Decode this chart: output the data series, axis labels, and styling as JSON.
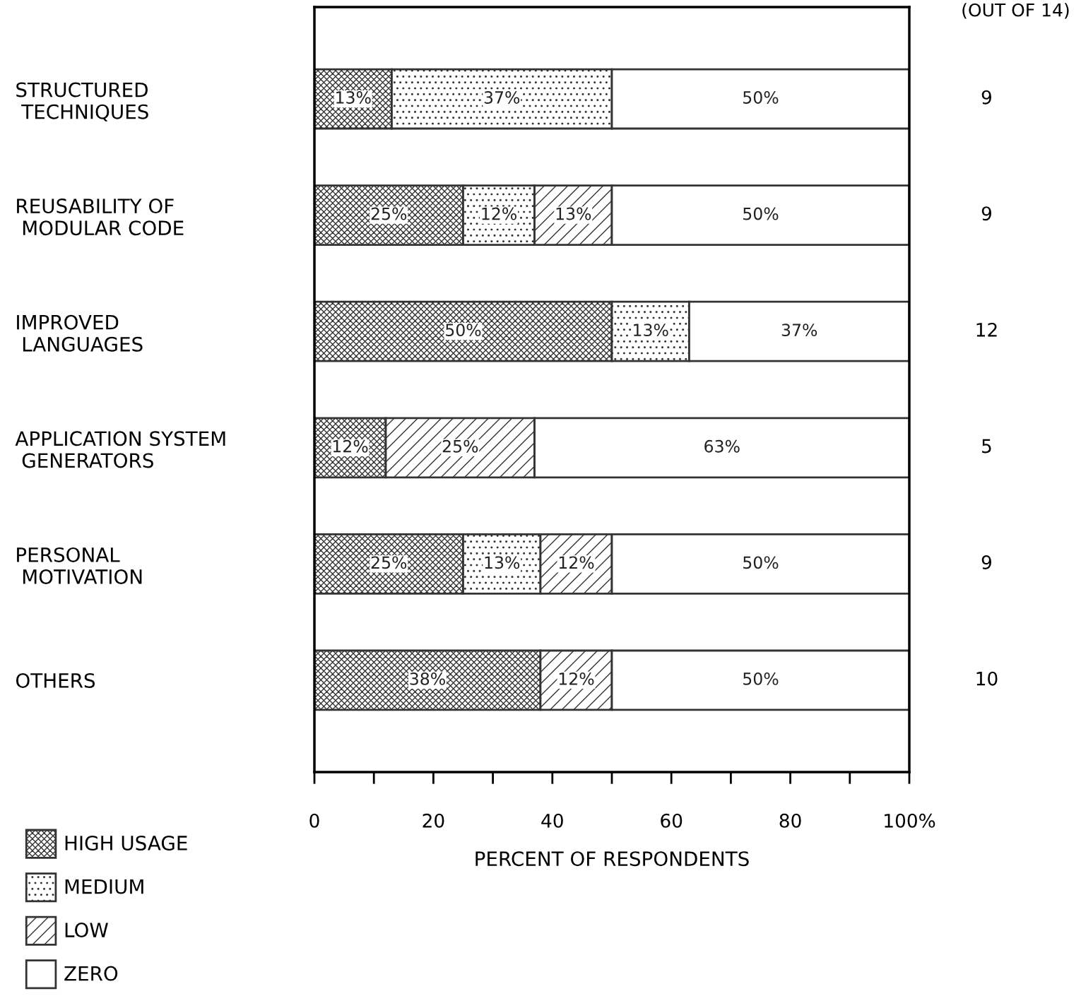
{
  "chart_data": {
    "type": "bar",
    "orientation": "horizontal",
    "stacked": true,
    "categories": [
      "STRUCTURED\n TECHNIQUES",
      "REUSABILITY OF\n MODULAR CODE",
      "IMPROVED\n LANGUAGES",
      "APPLICATION SYSTEM\n GENERATORS",
      "PERSONAL\n MOTIVATION",
      "OTHERS"
    ],
    "series": [
      {
        "name": "HIGH USAGE",
        "color": "#333333",
        "values": [
          13,
          25,
          50,
          12,
          25,
          38
        ],
        "value_labels": [
          "13%",
          "25%",
          "50%",
          "12%",
          "25%",
          "38%"
        ]
      },
      {
        "name": "MEDIUM",
        "color": "#333333",
        "values": [
          37,
          12,
          13,
          null,
          13,
          null
        ],
        "value_labels": [
          "37%",
          "12%",
          "13%",
          null,
          "13%",
          null
        ]
      },
      {
        "name": "LOW",
        "color": "#333333",
        "values": [
          null,
          13,
          null,
          25,
          12,
          12
        ],
        "value_labels": [
          null,
          "13%",
          null,
          "25%",
          "12%",
          "12%"
        ]
      },
      {
        "name": "ZERO",
        "color": "#ffffff",
        "values": [
          50,
          50,
          37,
          63,
          50,
          50
        ],
        "value_labels": [
          "50%",
          "50%",
          "37%",
          "63%",
          "50%",
          "50%"
        ]
      }
    ],
    "xlabel": "PERCENT OF RESPONDENTS",
    "xlim": [
      0,
      100
    ],
    "xticks": [
      0,
      20,
      40,
      60,
      80,
      {
        "value": 100,
        "label": "100%"
      }
    ],
    "annotations": [
      "(OUT OF 14)",
      "9",
      "9",
      "12",
      "5",
      "9",
      "10"
    ],
    "legend": "bottom left",
    "grid": false
  }
}
